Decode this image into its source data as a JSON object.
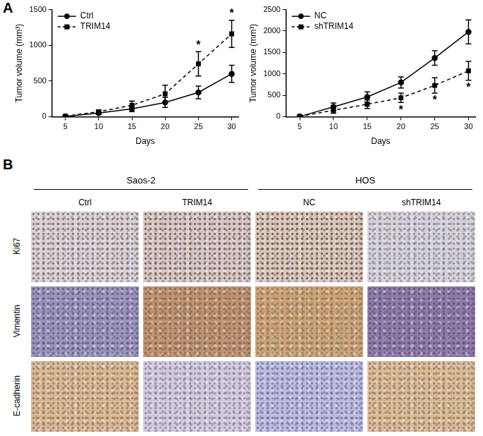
{
  "panel_labels": [
    "A",
    "B"
  ],
  "chart_data": [
    {
      "type": "line",
      "x": [
        5,
        10,
        15,
        20,
        25,
        30
      ],
      "x_label": "Days",
      "y_label": "Tumor volume (mm³)",
      "xlim": [
        3,
        31
      ],
      "xticks": [
        5,
        10,
        15,
        20,
        25,
        30
      ],
      "ylim": [
        0,
        1500
      ],
      "yticks": [
        0,
        500,
        1000,
        1500
      ],
      "grid": false,
      "legend": "top-left",
      "series": [
        {
          "name": "Ctrl",
          "color": "#000000",
          "marker": "circle",
          "line_style": "solid",
          "values": [
            5,
            50,
            110,
            200,
            340,
            600
          ],
          "errors": [
            5,
            20,
            40,
            70,
            90,
            120
          ]
        },
        {
          "name": "TRIM14",
          "color": "#000000",
          "marker": "square",
          "line_style": "dashed",
          "values": [
            8,
            70,
            160,
            320,
            740,
            1160
          ],
          "errors": [
            5,
            25,
            60,
            120,
            170,
            190
          ]
        }
      ],
      "annotations": [
        {
          "x": 25,
          "text": "*",
          "series": "TRIM14"
        },
        {
          "x": 30,
          "text": "*",
          "series": "TRIM14"
        }
      ]
    },
    {
      "type": "line",
      "x": [
        5,
        10,
        15,
        20,
        25,
        30
      ],
      "x_label": "Days",
      "y_label": "Tumor volume (mm³)",
      "xlim": [
        3,
        31
      ],
      "xticks": [
        5,
        10,
        15,
        20,
        25,
        30
      ],
      "ylim": [
        0,
        2500
      ],
      "yticks": [
        0,
        500,
        1000,
        1500,
        2000,
        2500
      ],
      "grid": false,
      "legend": "top-left",
      "series": [
        {
          "name": "NC",
          "color": "#000000",
          "marker": "circle",
          "line_style": "solid",
          "values": [
            5,
            230,
            460,
            800,
            1370,
            1980
          ],
          "errors": [
            5,
            90,
            120,
            130,
            170,
            280
          ]
        },
        {
          "name": "shTRIM14",
          "color": "#000000",
          "marker": "square",
          "line_style": "dashed",
          "values": [
            5,
            150,
            290,
            440,
            730,
            1070
          ],
          "errors": [
            5,
            70,
            100,
            110,
            180,
            220
          ]
        }
      ],
      "annotations": [
        {
          "x": 20,
          "text": "*",
          "series": "shTRIM14"
        },
        {
          "x": 25,
          "text": "*",
          "series": "shTRIM14"
        },
        {
          "x": 30,
          "text": "*",
          "series": "shTRIM14"
        }
      ]
    }
  ],
  "image_grid": {
    "groups": [
      {
        "name": "Saos-2",
        "columns": [
          "Ctrl",
          "TRIM14"
        ]
      },
      {
        "name": "HOS",
        "columns": [
          "NC",
          "shTRIM14"
        ]
      }
    ],
    "rows": [
      "Ki67",
      "Vimentin",
      "E-cadherin"
    ]
  }
}
